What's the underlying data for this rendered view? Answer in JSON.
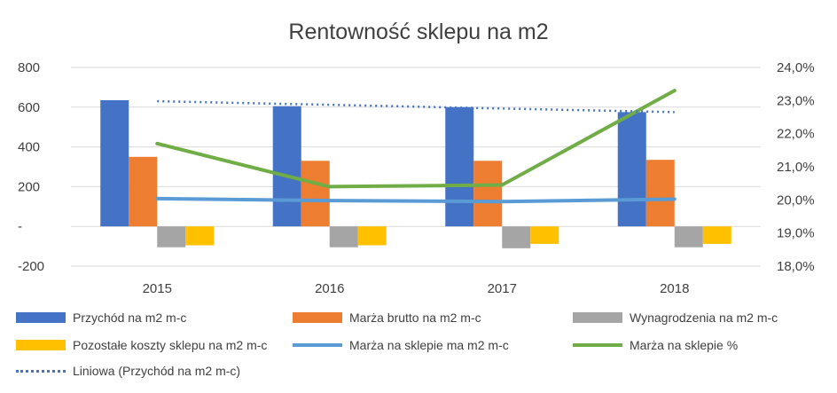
{
  "chart_data": {
    "type": "bar",
    "title": "Rentowność sklepu na m2",
    "categories": [
      "2015",
      "2016",
      "2017",
      "2018"
    ],
    "y_left": {
      "ticks": [
        800,
        600,
        400,
        200,
        0,
        -200
      ],
      "tick_labels": [
        "800",
        "600",
        "400",
        "200",
        "-",
        "-200"
      ],
      "range": [
        -200,
        800
      ]
    },
    "y_right": {
      "ticks": [
        0.24,
        0.23,
        0.22,
        0.21,
        0.2,
        0.19,
        0.18
      ],
      "tick_labels": [
        "24,0%",
        "23,0%",
        "22,0%",
        "21,0%",
        "20,0%",
        "19,0%",
        "18,0%"
      ],
      "range": [
        0.18,
        0.24
      ]
    },
    "bar_series": [
      {
        "name": "Przychód na m2 m-c",
        "color": "#4472C4",
        "values": [
          635,
          605,
          600,
          575
        ]
      },
      {
        "name": "Marża brutto na m2 m-c",
        "color": "#ED7D31",
        "values": [
          350,
          330,
          330,
          335
        ]
      },
      {
        "name": "Wynagrodzenia na m2 m-c",
        "color": "#A5A5A5",
        "values": [
          -105,
          -105,
          -110,
          -105
        ]
      },
      {
        "name": "Pozostałe koszty sklepu na m2 m-c",
        "color": "#FFC000",
        "values": [
          -95,
          -95,
          -88,
          -88
        ]
      }
    ],
    "line_series": [
      {
        "name": "Marża na sklepie ma m2 m-c",
        "color": "#5B9BD5",
        "axis": "left",
        "values": [
          140,
          130,
          125,
          137
        ]
      },
      {
        "name": "Marża na sklepie %",
        "color": "#70AD47",
        "axis": "right",
        "values": [
          0.217,
          0.204,
          0.2045,
          0.233
        ]
      },
      {
        "name": "Liniowa (Przychód na m2 m-c)",
        "color": "#4472C4",
        "axis": "left",
        "style": "dotted",
        "values": [
          630,
          612,
          593,
          575
        ]
      }
    ],
    "legend_placement": "bottom",
    "grid": true
  }
}
